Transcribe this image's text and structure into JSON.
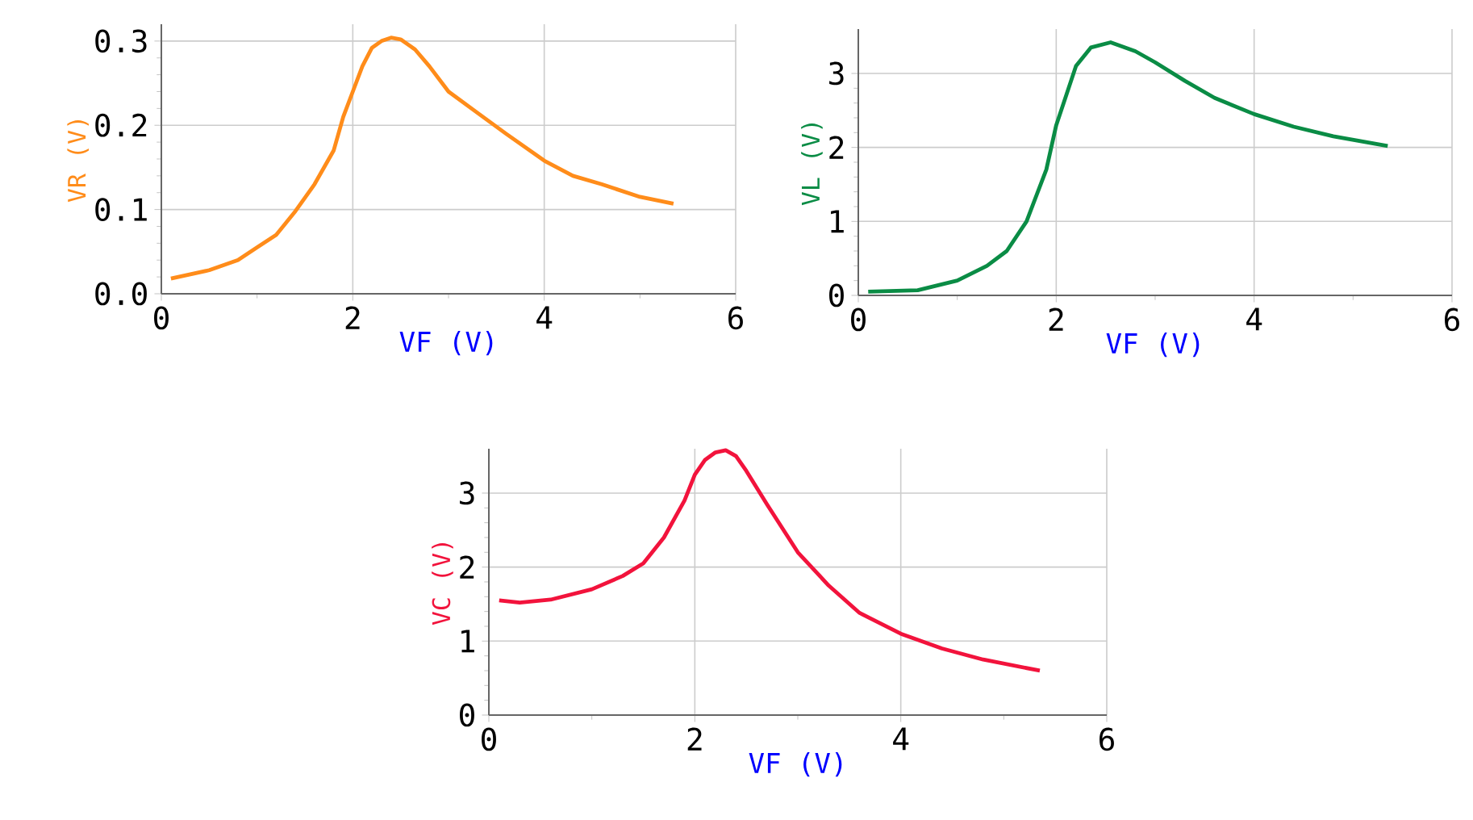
{
  "chart_data": [
    {
      "type": "line",
      "xlabel": "VF (V)",
      "ylabel": "VR (V)",
      "xlim": [
        0,
        6
      ],
      "ylim": [
        0,
        0.32
      ],
      "xticks": [
        0,
        2,
        4,
        6
      ],
      "yticks": [
        {
          "value": 0,
          "label": "0.0"
        },
        0.1,
        0.2,
        0.3
      ],
      "grid": true,
      "x": [
        0.1,
        0.5,
        0.8,
        1.0,
        1.2,
        1.4,
        1.6,
        1.8,
        1.9,
        2.0,
        2.1,
        2.2,
        2.3,
        2.4,
        2.5,
        2.65,
        2.8,
        3.0,
        3.3,
        3.6,
        4.0,
        4.3,
        4.6,
        5.0,
        5.35
      ],
      "series": [
        {
          "color": "#ff8c1a",
          "values": [
            0.018,
            0.028,
            0.04,
            0.055,
            0.07,
            0.098,
            0.13,
            0.17,
            0.21,
            0.24,
            0.27,
            0.292,
            0.3,
            0.304,
            0.302,
            0.29,
            0.27,
            0.24,
            0.215,
            0.19,
            0.158,
            0.14,
            0.13,
            0.115,
            0.107
          ]
        }
      ]
    },
    {
      "type": "line",
      "xlabel": "VF (V)",
      "ylabel": "VL (V)",
      "xlim": [
        0,
        6
      ],
      "ylim": [
        0,
        3.6
      ],
      "xticks": [
        0,
        2,
        4,
        6
      ],
      "yticks": [
        0,
        1,
        2,
        3
      ],
      "grid": true,
      "x": [
        0.1,
        0.6,
        1.0,
        1.3,
        1.5,
        1.7,
        1.9,
        2.0,
        2.1,
        2.2,
        2.35,
        2.55,
        2.8,
        3.0,
        3.3,
        3.6,
        4.0,
        4.4,
        4.8,
        5.35
      ],
      "series": [
        {
          "color": "#0a8c45",
          "values": [
            0.05,
            0.07,
            0.2,
            0.4,
            0.6,
            1.0,
            1.7,
            2.3,
            2.7,
            3.1,
            3.35,
            3.42,
            3.3,
            3.15,
            2.9,
            2.67,
            2.45,
            2.28,
            2.15,
            2.02
          ]
        }
      ]
    },
    {
      "type": "line",
      "xlabel": "VF (V)",
      "ylabel": "VC (V)",
      "xlim": [
        0,
        6
      ],
      "ylim": [
        0,
        3.6
      ],
      "xticks": [
        0,
        2,
        4,
        6
      ],
      "yticks": [
        0,
        1,
        2,
        3
      ],
      "grid": true,
      "x": [
        0.1,
        0.3,
        0.6,
        1.0,
        1.3,
        1.5,
        1.7,
        1.9,
        2.0,
        2.1,
        2.2,
        2.3,
        2.4,
        2.5,
        2.7,
        3.0,
        3.3,
        3.6,
        4.0,
        4.4,
        4.8,
        5.35
      ],
      "series": [
        {
          "color": "#f2133c",
          "values": [
            1.55,
            1.52,
            1.56,
            1.7,
            1.88,
            2.05,
            2.4,
            2.9,
            3.25,
            3.45,
            3.55,
            3.58,
            3.5,
            3.3,
            2.85,
            2.2,
            1.75,
            1.38,
            1.1,
            0.9,
            0.75,
            0.6
          ]
        }
      ]
    }
  ]
}
